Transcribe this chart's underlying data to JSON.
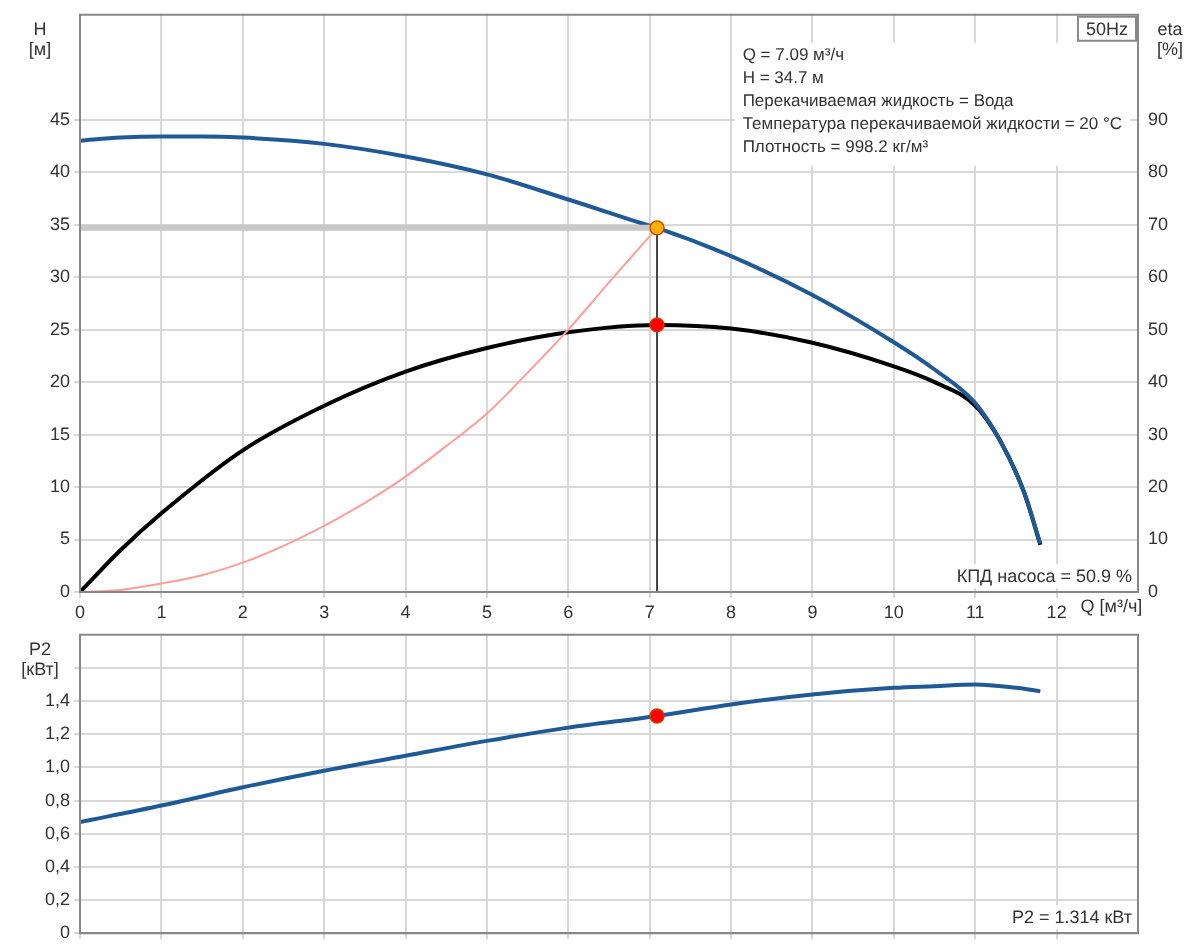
{
  "chart_data": [
    {
      "type": "line",
      "title": "50Hz",
      "xlabel": "Q [м³/ч]",
      "ylabel": "H [м]",
      "y2label": "eta [%]",
      "grid": true,
      "legend": false,
      "marker": "none",
      "xlim": [
        0,
        13
      ],
      "xticks": [
        0,
        1,
        2,
        3,
        4,
        5,
        6,
        7,
        8,
        9,
        10,
        11,
        12
      ],
      "ylim": [
        0,
        55
      ],
      "yticks": [
        0,
        5,
        10,
        15,
        20,
        25,
        30,
        35,
        40,
        45
      ],
      "y2lim": [
        0,
        110
      ],
      "y2ticks": [
        0,
        10,
        20,
        30,
        40,
        50,
        60,
        70,
        80,
        90
      ],
      "annotations": [
        "Q = 7.09 м³/ч",
        "H = 34.7 м",
        "Перекачиваемая жидкость = Вода",
        "Температура перекачиваемой жидкости = 20 °C",
        "Плотность = 998.2 кг/м³",
        "КПД насоса = 50.9 %"
      ],
      "series": [
        {
          "type": "line",
          "color": "#c8c8c8",
          "x": [
            0,
            7.09
          ],
          "values": [
            34.7,
            34.7
          ]
        },
        {
          "type": "line",
          "color": "#444444",
          "x": [
            7.09,
            7.09
          ],
          "values": [
            0,
            34.7
          ]
        },
        {
          "type": "line",
          "color": "#ff9c9c",
          "x": [
            0,
            0.5,
            1,
            1.5,
            2,
            2.5,
            3,
            3.5,
            4,
            4.5,
            5,
            5.5,
            6,
            6.5,
            7.09
          ],
          "values": [
            0,
            0.2,
            0.8,
            1.6,
            2.8,
            4.4,
            6.3,
            8.5,
            11,
            13.9,
            17,
            20.9,
            25,
            29.5,
            34.7
          ]
        },
        {
          "type": "line",
          "color": "#1f5a96",
          "x": [
            0,
            0.5,
            1,
            1.5,
            2,
            3,
            4,
            5,
            6,
            7,
            7.09,
            8,
            9,
            10,
            10.5,
            11,
            11.3,
            11.6,
            11.8
          ],
          "values": [
            43,
            43.3,
            43.4,
            43.4,
            43.3,
            42.7,
            41.5,
            39.8,
            37.4,
            34.9,
            34.7,
            32,
            28.3,
            23.8,
            21.2,
            18,
            14.5,
            9.5,
            4.6
          ]
        },
        {
          "type": "line",
          "axis": "y2",
          "color": "#000000",
          "x": [
            0,
            0.5,
            1,
            2,
            3,
            4,
            5,
            6,
            7.09,
            8,
            9,
            10,
            10.5,
            11,
            11.3,
            11.6,
            11.8
          ],
          "values": [
            0,
            8,
            15,
            27,
            35.5,
            42,
            46.5,
            49.5,
            50.9,
            50.2,
            47.5,
            43,
            40,
            35.5,
            29,
            19,
            9
          ]
        },
        {
          "type": "scatter",
          "marker": "circle",
          "color": "#ffb000",
          "x": [
            7.09
          ],
          "values": [
            34.7
          ]
        },
        {
          "type": "scatter",
          "marker": "circle",
          "axis": "y2",
          "color": "#ff0000",
          "x": [
            7.09
          ],
          "values": [
            50.9
          ]
        }
      ]
    },
    {
      "type": "line",
      "ylabel": "P2 [кВт]",
      "grid": true,
      "legend": false,
      "marker": "none",
      "tick_labels": "y",
      "xlim": [
        0,
        13
      ],
      "xticks": [
        0,
        1,
        2,
        3,
        4,
        5,
        6,
        7,
        8,
        9,
        10,
        11,
        12
      ],
      "ylim": [
        0,
        1.8
      ],
      "yticks": [
        0,
        {
          "value": 0.2,
          "label": "0,2"
        },
        {
          "value": 0.4,
          "label": "0,4"
        },
        {
          "value": 0.6,
          "label": "0,6"
        },
        {
          "value": 0.8,
          "label": "0,8"
        },
        {
          "value": 1,
          "label": "1,0"
        },
        {
          "value": 1.2,
          "label": "1,2"
        },
        {
          "value": 1.4,
          "label": "1,4"
        },
        {
          "value": 1.6,
          "label": null
        }
      ],
      "annotations": [
        "P2 = 1.314 кВт"
      ],
      "series": [
        {
          "type": "line",
          "color": "#1f5a96",
          "x": [
            0,
            1,
            2,
            3,
            4,
            5,
            6,
            7.09,
            8,
            9,
            10,
            10.5,
            11,
            11.5,
            11.8
          ],
          "values": [
            0.67,
            0.77,
            0.88,
            0.98,
            1.07,
            1.16,
            1.24,
            1.31,
            1.38,
            1.44,
            1.48,
            1.49,
            1.5,
            1.48,
            1.46
          ]
        },
        {
          "type": "scatter",
          "marker": "circle",
          "color": "#ff0000",
          "x": [
            7.09
          ],
          "values": [
            1.31
          ]
        }
      ]
    }
  ]
}
